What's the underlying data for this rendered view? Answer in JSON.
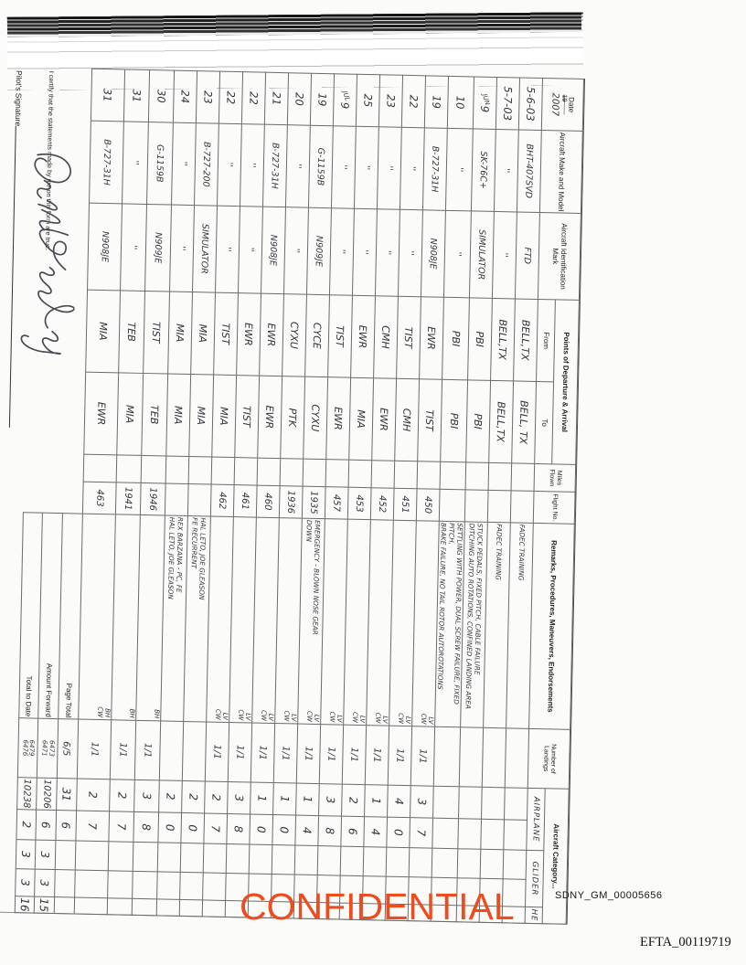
{
  "stamps": {
    "confidential": "CONFIDENTIAL",
    "bates_top": "SDNY_GM_00005656",
    "bates_bottom": "EFTA_00119719"
  },
  "certification": {
    "text": "I certify that the statements made by me on this form are true.",
    "signature_label": "Pilot's Signature"
  },
  "table": {
    "headers": {
      "date": "Date",
      "year_printed": "19",
      "year_dash": "——",
      "year_written": "2007",
      "make": "Aircraft Make and Model",
      "ident": "Aircraft Identification Mark",
      "points": "Points of Departure & Arrival",
      "from": "From",
      "to": "To",
      "miles": "Miles Flown",
      "flight": "Flight No.",
      "remarks": "Remarks, Procedures, Maneuvers, Endorsements",
      "landings": "Number of Landings",
      "category": "Aircraft Category...",
      "category_cols": [
        "AIRPLANE",
        "GLIDER",
        "HE"
      ]
    },
    "rows": [
      {
        "date": "5-6-03",
        "month": "",
        "make": "BHT-407SVD",
        "ident": "FTD",
        "from": "BELL,TX",
        "to": "BELL, TX",
        "miles": "",
        "flight": "",
        "remarks": [
          "FADEC TRAINING",
          ""
        ],
        "crew": "",
        "landings": "",
        "t1": "",
        "t2": "",
        "g1": "",
        "g2": "",
        "he": ""
      },
      {
        "date": "5-7-03",
        "month": "",
        "make": "''",
        "ident": "''",
        "from": "BELL,TX",
        "to": "BELL,TX",
        "miles": "",
        "flight": "",
        "remarks": [
          "FADEC TRAINING",
          ""
        ],
        "crew": "",
        "landings": "",
        "t1": "",
        "t2": "",
        "g1": "",
        "g2": "",
        "he": ""
      },
      {
        "date": "9",
        "month": "JUN",
        "make": "SK-76C+",
        "ident": "SIMULATOR",
        "from": "PBI",
        "to": "PBI",
        "miles": "",
        "flight": "",
        "remarks": [
          "STUCK PEDALS, FIXED PITCH, CABLE FAILURE",
          "DITCHING AUTO ROTATIONS, CONFINED LANDING AREA"
        ],
        "crew": "",
        "landings": "",
        "t1": "",
        "t2": "",
        "g1": "",
        "g2": "",
        "he": ""
      },
      {
        "date": "10",
        "month": "",
        "make": "''",
        "ident": "''",
        "from": "PBI",
        "to": "PBI",
        "miles": "",
        "flight": "",
        "remarks": [
          "SETTLING WITH POWER, DUAL SCREW FAILURE, FIXED PITCH,",
          "BRAKE FAILURE, NO TAIL ROTOR AUTOROTATIONS"
        ],
        "crew": "",
        "landings": "",
        "t1": "",
        "t2": "",
        "g1": "",
        "g2": "",
        "he": ""
      },
      {
        "date": "19",
        "month": "",
        "make": "B-727-31H",
        "ident": "N908JE",
        "from": "EWR",
        "to": "TIST",
        "miles": "",
        "flight": "450",
        "remarks": [
          "",
          ""
        ],
        "crew": "LV|CW",
        "landings": "1/1",
        "t1": "3",
        "t2": "7",
        "g1": "",
        "g2": "",
        "he": ""
      },
      {
        "date": "22",
        "month": "",
        "make": "''",
        "ident": "''",
        "from": "TIST",
        "to": "CMH",
        "miles": "",
        "flight": "451",
        "remarks": [
          "",
          ""
        ],
        "crew": "LV|CW",
        "landings": "1/1",
        "t1": "4",
        "t2": "0",
        "g1": "",
        "g2": "",
        "he": ""
      },
      {
        "date": "23",
        "month": "",
        "make": "''",
        "ident": "''",
        "from": "CMH",
        "to": "EWR",
        "miles": "",
        "flight": "452",
        "remarks": [
          "",
          ""
        ],
        "crew": "LV|CW",
        "landings": "1/1",
        "t1": "1",
        "t2": "4",
        "g1": "",
        "g2": "",
        "he": ""
      },
      {
        "date": "25",
        "month": "",
        "make": "''",
        "ident": "''",
        "from": "EWR",
        "to": "MIA",
        "miles": "",
        "flight": "453",
        "remarks": [
          "",
          ""
        ],
        "crew": "LV|CW",
        "landings": "1/1",
        "t1": "2",
        "t2": "6",
        "g1": "",
        "g2": "",
        "he": ""
      },
      {
        "date": "9",
        "month": "JUL",
        "make": "''",
        "ident": "''",
        "from": "TIST",
        "to": "EWR",
        "miles": "",
        "flight": "457",
        "remarks": [
          "",
          ""
        ],
        "crew": "LV|CW",
        "landings": "1/1",
        "t1": "3",
        "t2": "8",
        "g1": "",
        "g2": "",
        "he": ""
      },
      {
        "date": "19",
        "month": "",
        "make": "G-1159B",
        "ident": "N909JE",
        "from": "CYCE",
        "to": "CYXU",
        "miles": "",
        "flight": "1935",
        "remarks": [
          "EMERGENCY - BLOWN NOSE GEAR",
          "DOWN"
        ],
        "crew": "LV|CW",
        "landings": "1/1",
        "t1": "1",
        "t2": "4",
        "g1": "",
        "g2": "",
        "he": ""
      },
      {
        "date": "20",
        "month": "",
        "make": "''",
        "ident": "''",
        "from": "CYXU",
        "to": "PTK",
        "miles": "",
        "flight": "1936",
        "remarks": [
          "",
          ""
        ],
        "crew": "LV|CW",
        "landings": "1/1",
        "t1": "1",
        "t2": "0",
        "g1": "",
        "g2": "",
        "he": ""
      },
      {
        "date": "21",
        "month": "",
        "make": "B-727-31H",
        "ident": "N908JE",
        "from": "EWR",
        "to": "EWR",
        "miles": "",
        "flight": "460",
        "remarks": [
          "",
          ""
        ],
        "crew": "LV|CW",
        "landings": "1/1",
        "t1": "1",
        "t2": "0",
        "g1": "",
        "g2": "",
        "he": ""
      },
      {
        "date": "22",
        "month": "",
        "make": "''",
        "ident": "''",
        "from": "EWR",
        "to": "TIST",
        "miles": "",
        "flight": "461",
        "remarks": [
          "",
          ""
        ],
        "crew": "LV|CW",
        "landings": "1/1",
        "t1": "3",
        "t2": "8",
        "g1": "",
        "g2": "",
        "he": ""
      },
      {
        "date": "22",
        "month": "",
        "make": "''",
        "ident": "''",
        "from": "TIST",
        "to": "MIA",
        "miles": "",
        "flight": "462",
        "remarks": [
          "",
          ""
        ],
        "crew": "LV|CW",
        "landings": "1/1",
        "t1": "2",
        "t2": "7",
        "g1": "",
        "g2": "",
        "he": ""
      },
      {
        "date": "23",
        "month": "",
        "make": "B-727-200",
        "ident": "SIMULATOR",
        "from": "MIA",
        "to": "MIA",
        "miles": "",
        "flight": "",
        "remarks": [
          "HAL LETO, JOE GLEASON",
          "FE RECURRENT"
        ],
        "crew": "",
        "landings": "",
        "t1": "2",
        "t2": "0",
        "g1": "",
        "g2": "",
        "he": ""
      },
      {
        "date": "24",
        "month": "",
        "make": "''",
        "ident": "''",
        "from": "MIA",
        "to": "MIA",
        "miles": "",
        "flight": "",
        "remarks": [
          "REX BARZANA - PC, FE",
          "HAL LETO, JOE GLEASON"
        ],
        "crew": "",
        "landings": "",
        "t1": "2",
        "t2": "0",
        "g1": "",
        "g2": "",
        "he": ""
      },
      {
        "date": "30",
        "month": "",
        "make": "G-1159B",
        "ident": "N909JE",
        "from": "TIST",
        "to": "TEB",
        "miles": "",
        "flight": "1946",
        "remarks": [
          "",
          ""
        ],
        "crew": "BH",
        "landings": "1/1",
        "t1": "3",
        "t2": "8",
        "g1": "",
        "g2": "",
        "he": ""
      },
      {
        "date": "31",
        "month": "",
        "make": "''",
        "ident": "''",
        "from": "TEB",
        "to": "MIA",
        "miles": "",
        "flight": "1941",
        "remarks": [
          "",
          ""
        ],
        "crew": "BH",
        "landings": "1/1",
        "t1": "2",
        "t2": "7",
        "g1": "",
        "g2": "",
        "he": ""
      },
      {
        "date": "31",
        "month": "",
        "make": "B-727-31H",
        "ident": "N908JE",
        "from": "MIA",
        "to": "EWR",
        "miles": "",
        "flight": "463",
        "remarks": [
          "",
          ""
        ],
        "crew": "BH|CW",
        "landings": "1/1",
        "t1": "2",
        "t2": "7",
        "g1": "",
        "g2": "",
        "he": ""
      }
    ],
    "totals": [
      {
        "label": "Page Total",
        "landings": "6/5",
        "landings2": "",
        "t1": "31",
        "t2": "6",
        "g1": "",
        "g2": "",
        "he": ""
      },
      {
        "label": "Amount Forward",
        "landings": "6473",
        "landings2": "6471",
        "t1": "10206",
        "t2": "6",
        "g1": "3",
        "g2": "3",
        "he": "15"
      },
      {
        "label": "Total to Date",
        "landings": "6479",
        "landings2": "6476",
        "t1": "10238",
        "t2": "2",
        "g1": "3",
        "g2": "3",
        "he": "16"
      }
    ]
  }
}
